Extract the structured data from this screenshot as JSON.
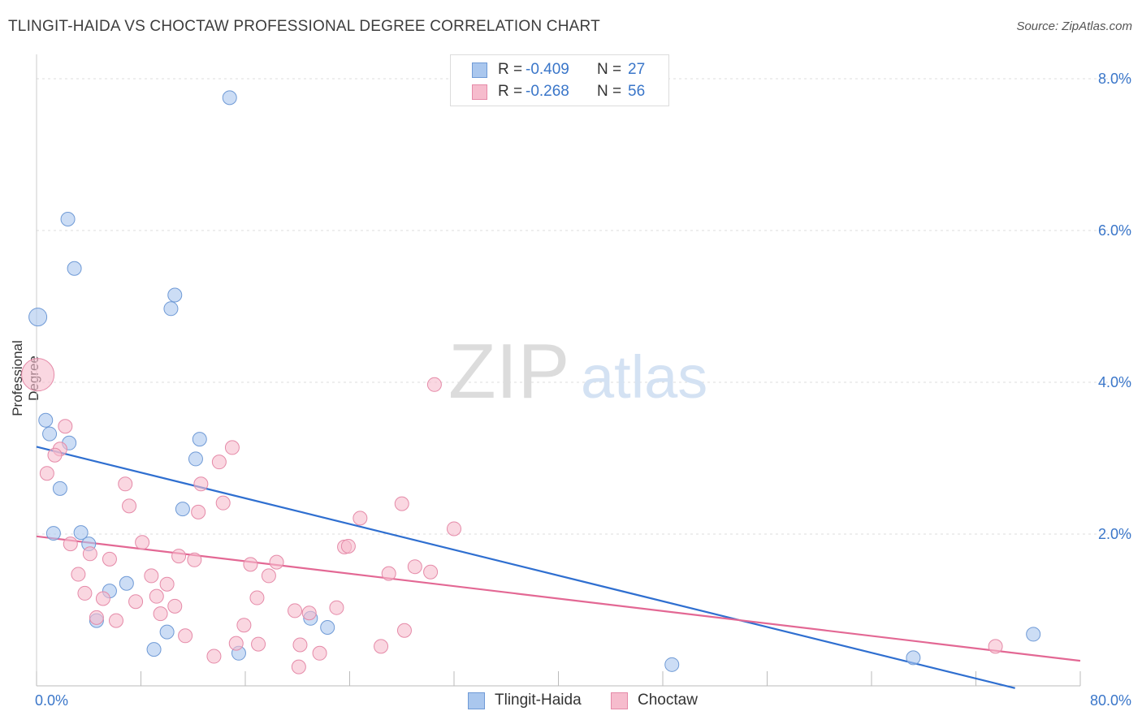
{
  "title": "TLINGIT-HAIDA VS CHOCTAW PROFESSIONAL DEGREE CORRELATION CHART",
  "source": "Source: ZipAtlas.com",
  "watermark": {
    "zip": "ZIP",
    "atlas": "atlas"
  },
  "colors": {
    "blue_fill": "#aac7ee",
    "blue_stroke": "#6f9ad6",
    "blue_line": "#2f6fd0",
    "pink_fill": "#f6bccd",
    "pink_stroke": "#e58aa8",
    "pink_line": "#e36894",
    "axis_text": "#3a76c9",
    "grid": "#dddddd"
  },
  "stats": [
    {
      "series": "Tlingit-Haida",
      "r_label": "R =",
      "r_value": "-0.409",
      "n_label": "N =",
      "n_value": "27"
    },
    {
      "series": "Choctaw",
      "r_label": "R =",
      "r_value": "-0.268",
      "n_label": "N =",
      "n_value": "56"
    }
  ],
  "chart_data": {
    "type": "scatter",
    "title": "TLINGIT-HAIDA VS CHOCTAW PROFESSIONAL DEGREE CORRELATION CHART",
    "xlabel": "",
    "ylabel": "Professional Degree",
    "xlim": [
      0,
      80
    ],
    "ylim": [
      0,
      8.0
    ],
    "x_tick_labels": [
      "0.0%",
      "80.0%"
    ],
    "y_ticks": [
      2.0,
      4.0,
      6.0,
      8.0
    ],
    "y_tick_labels": [
      "2.0%",
      "4.0%",
      "6.0%",
      "8.0%"
    ],
    "grid": true,
    "legend_position": "bottom-center",
    "series": [
      {
        "name": "Tlingit-Haida",
        "color": "blue",
        "trend": {
          "x": [
            0,
            75.0
          ],
          "y": [
            3.15,
            -0.03
          ]
        },
        "points": [
          {
            "x": 14.8,
            "y": 7.75
          },
          {
            "x": 2.4,
            "y": 6.15
          },
          {
            "x": 2.9,
            "y": 5.5
          },
          {
            "x": 10.6,
            "y": 5.15
          },
          {
            "x": 10.3,
            "y": 4.97
          },
          {
            "x": 0.1,
            "y": 4.86,
            "size": "large"
          },
          {
            "x": 0.7,
            "y": 3.5
          },
          {
            "x": 1.0,
            "y": 3.32
          },
          {
            "x": 2.5,
            "y": 3.2
          },
          {
            "x": 12.5,
            "y": 3.25
          },
          {
            "x": 12.2,
            "y": 2.99
          },
          {
            "x": 1.8,
            "y": 2.6
          },
          {
            "x": 11.2,
            "y": 2.33
          },
          {
            "x": 1.3,
            "y": 2.01
          },
          {
            "x": 3.4,
            "y": 2.02
          },
          {
            "x": 4.0,
            "y": 1.87
          },
          {
            "x": 5.6,
            "y": 1.25
          },
          {
            "x": 6.9,
            "y": 1.35
          },
          {
            "x": 4.6,
            "y": 0.86
          },
          {
            "x": 10.0,
            "y": 0.71
          },
          {
            "x": 9.0,
            "y": 0.48
          },
          {
            "x": 15.5,
            "y": 0.43
          },
          {
            "x": 21.0,
            "y": 0.89
          },
          {
            "x": 22.3,
            "y": 0.77
          },
          {
            "x": 48.7,
            "y": 0.28
          },
          {
            "x": 67.2,
            "y": 0.37
          },
          {
            "x": 76.4,
            "y": 0.68
          }
        ]
      },
      {
        "name": "Choctaw",
        "color": "pink",
        "trend": {
          "x": [
            0,
            80
          ],
          "y": [
            1.97,
            0.33
          ]
        },
        "points": [
          {
            "x": 0.1,
            "y": 4.1,
            "size": "xlarge"
          },
          {
            "x": 30.5,
            "y": 3.97
          },
          {
            "x": 2.2,
            "y": 3.42
          },
          {
            "x": 1.8,
            "y": 3.12
          },
          {
            "x": 1.4,
            "y": 3.04
          },
          {
            "x": 15.0,
            "y": 3.14
          },
          {
            "x": 14.0,
            "y": 2.95
          },
          {
            "x": 0.8,
            "y": 2.8
          },
          {
            "x": 6.8,
            "y": 2.66
          },
          {
            "x": 12.6,
            "y": 2.66
          },
          {
            "x": 28.0,
            "y": 2.4
          },
          {
            "x": 14.3,
            "y": 2.41
          },
          {
            "x": 7.1,
            "y": 2.37
          },
          {
            "x": 12.4,
            "y": 2.29
          },
          {
            "x": 24.8,
            "y": 2.21
          },
          {
            "x": 32.0,
            "y": 2.07
          },
          {
            "x": 2.6,
            "y": 1.87
          },
          {
            "x": 8.1,
            "y": 1.89
          },
          {
            "x": 23.6,
            "y": 1.83
          },
          {
            "x": 23.9,
            "y": 1.84
          },
          {
            "x": 4.1,
            "y": 1.74
          },
          {
            "x": 10.9,
            "y": 1.71
          },
          {
            "x": 5.6,
            "y": 1.67
          },
          {
            "x": 12.1,
            "y": 1.66
          },
          {
            "x": 16.4,
            "y": 1.6
          },
          {
            "x": 18.4,
            "y": 1.63
          },
          {
            "x": 29.0,
            "y": 1.57
          },
          {
            "x": 3.2,
            "y": 1.47
          },
          {
            "x": 8.8,
            "y": 1.45
          },
          {
            "x": 17.8,
            "y": 1.45
          },
          {
            "x": 27.0,
            "y": 1.48
          },
          {
            "x": 30.2,
            "y": 1.5
          },
          {
            "x": 10.0,
            "y": 1.34
          },
          {
            "x": 3.7,
            "y": 1.22
          },
          {
            "x": 9.2,
            "y": 1.18
          },
          {
            "x": 16.9,
            "y": 1.16
          },
          {
            "x": 7.6,
            "y": 1.11
          },
          {
            "x": 5.1,
            "y": 1.15
          },
          {
            "x": 10.6,
            "y": 1.05
          },
          {
            "x": 23.0,
            "y": 1.03
          },
          {
            "x": 19.8,
            "y": 0.99
          },
          {
            "x": 20.9,
            "y": 0.96
          },
          {
            "x": 9.5,
            "y": 0.95
          },
          {
            "x": 4.6,
            "y": 0.9
          },
          {
            "x": 6.1,
            "y": 0.86
          },
          {
            "x": 15.9,
            "y": 0.8
          },
          {
            "x": 28.2,
            "y": 0.73
          },
          {
            "x": 11.4,
            "y": 0.66
          },
          {
            "x": 15.3,
            "y": 0.56
          },
          {
            "x": 17.0,
            "y": 0.55
          },
          {
            "x": 20.2,
            "y": 0.54
          },
          {
            "x": 26.4,
            "y": 0.52
          },
          {
            "x": 13.6,
            "y": 0.39
          },
          {
            "x": 21.7,
            "y": 0.43
          },
          {
            "x": 20.1,
            "y": 0.25
          },
          {
            "x": 73.5,
            "y": 0.52
          }
        ]
      }
    ]
  }
}
